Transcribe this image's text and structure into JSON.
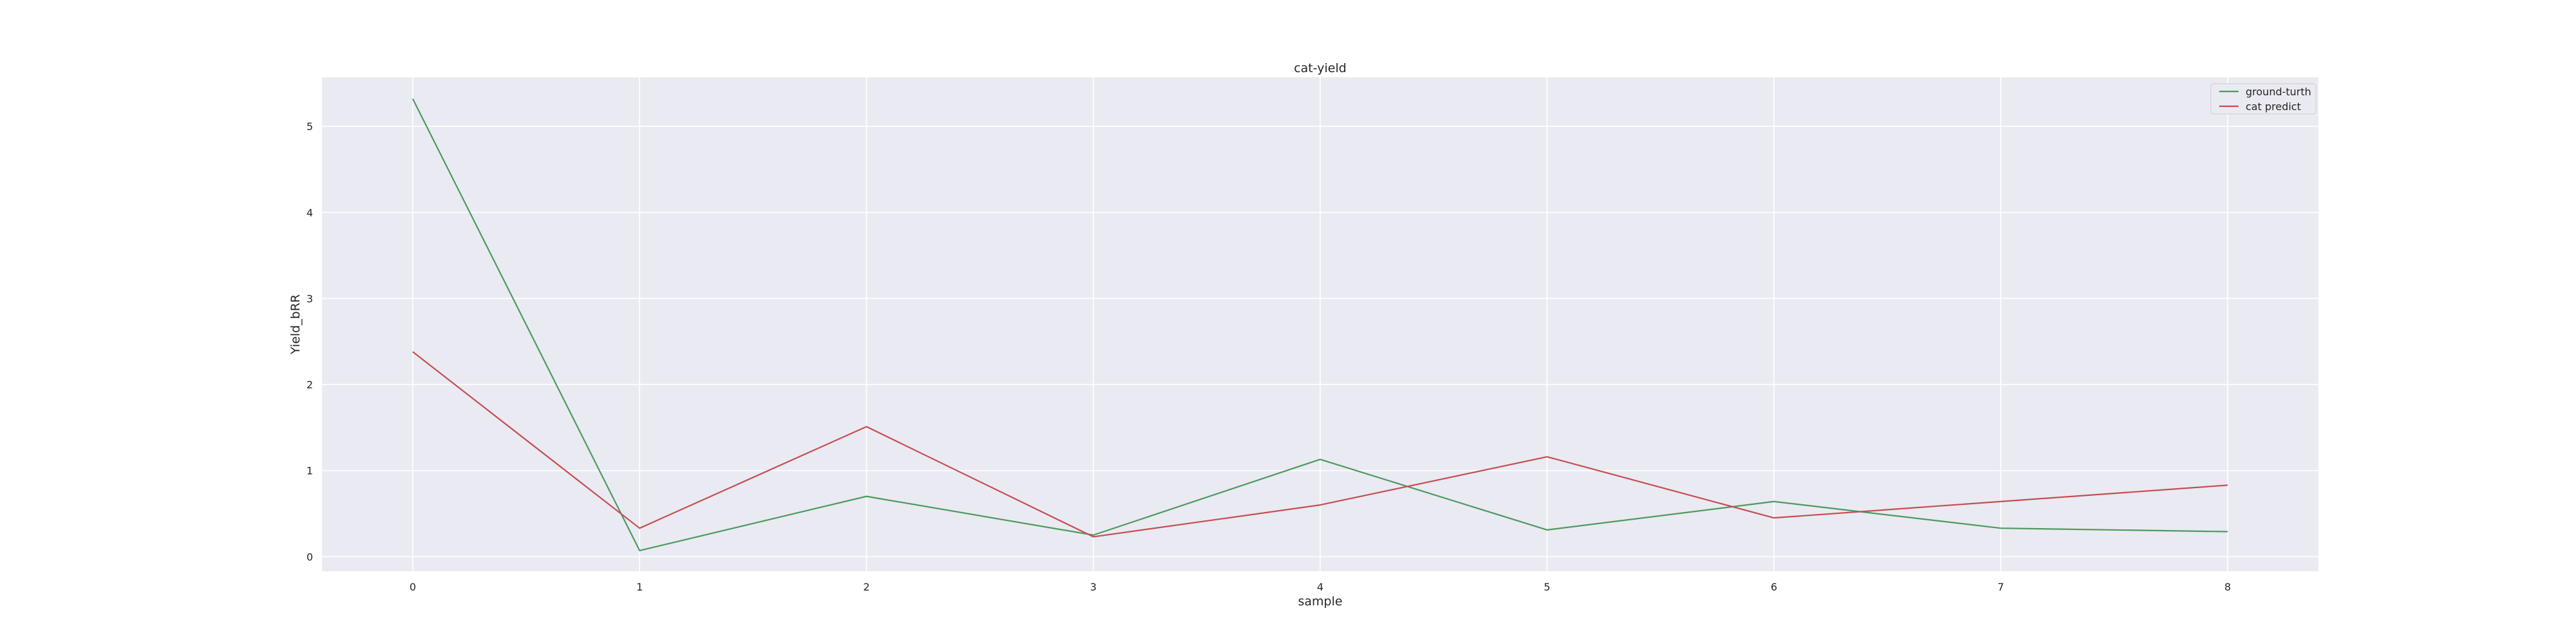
{
  "chart_data": {
    "type": "line",
    "title": "cat-yield",
    "xlabel": "sample",
    "ylabel": "Yield_bRR",
    "x": [
      0,
      1,
      2,
      3,
      4,
      5,
      6,
      7,
      8
    ],
    "xticks": [
      "0",
      "1",
      "2",
      "3",
      "4",
      "5",
      "6",
      "7",
      "8"
    ],
    "yticks": [
      "0",
      "1",
      "2",
      "3",
      "4",
      "5"
    ],
    "xlim": [
      -0.4,
      8.4
    ],
    "ylim": [
      -0.17,
      5.57
    ],
    "grid": true,
    "legend_position": "top-right",
    "series": [
      {
        "name": "ground-turth",
        "color": "#4c9a5f",
        "values": [
          5.32,
          0.07,
          0.7,
          0.25,
          1.13,
          0.31,
          0.64,
          0.33,
          0.29
        ]
      },
      {
        "name": "cat predict",
        "color": "#c44e52",
        "values": [
          2.38,
          0.33,
          1.51,
          0.23,
          0.6,
          1.16,
          0.45,
          0.64,
          0.83
        ]
      }
    ]
  }
}
